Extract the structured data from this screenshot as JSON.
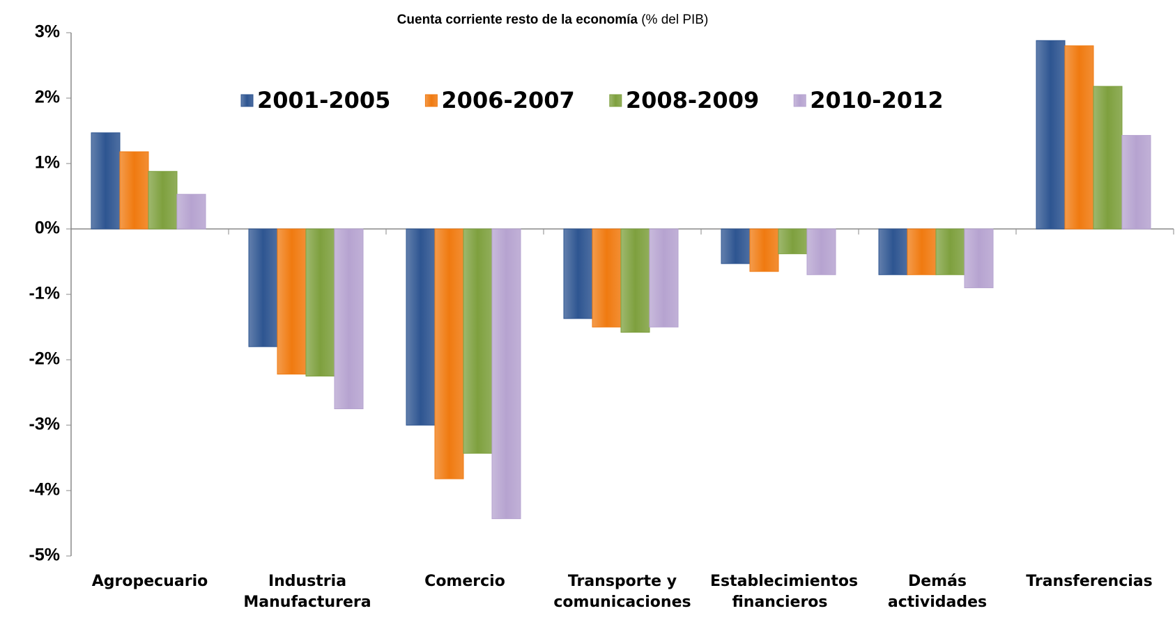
{
  "chart_data": {
    "type": "bar",
    "title": "Cuenta corriente resto de la economía",
    "subtitle": "(% del PIB)",
    "categories": [
      "Agropecuario",
      "Industria Manufacturera",
      "Comercio",
      "Transporte y comunicaciones",
      "Establecimientos financieros",
      "Demás actividades",
      "Transferencias"
    ],
    "series": [
      {
        "name": "2001-2005",
        "color": "#2e5591",
        "values": [
          1.47,
          -1.8,
          -3.0,
          -1.37,
          -0.53,
          -0.7,
          2.88
        ]
      },
      {
        "name": "2006-2007",
        "color": "#f07a10",
        "values": [
          1.18,
          -2.22,
          -3.82,
          -1.5,
          -0.65,
          -0.7,
          2.8
        ]
      },
      {
        "name": "2008-2009",
        "color": "#7ea03e",
        "values": [
          0.88,
          -2.25,
          -3.43,
          -1.58,
          -0.38,
          -0.7,
          2.18
        ]
      },
      {
        "name": "2010-2012",
        "color": "#b6a3d0",
        "values": [
          0.53,
          -2.75,
          -4.43,
          -1.5,
          -0.7,
          -0.9,
          1.43
        ]
      }
    ],
    "ylim": [
      -5,
      3
    ],
    "yticks": [
      {
        "value": -5,
        "label": "-5%"
      },
      {
        "value": -4,
        "label": "-4%"
      },
      {
        "value": -3,
        "label": "-3%"
      },
      {
        "value": -2,
        "label": "-2%"
      },
      {
        "value": -1,
        "label": "-1%"
      },
      {
        "value": 0,
        "label": "0%"
      },
      {
        "value": 1,
        "label": "1%"
      },
      {
        "value": 2,
        "label": "2%"
      },
      {
        "value": 3,
        "label": "3%"
      }
    ],
    "grid": false,
    "legend": "top"
  }
}
